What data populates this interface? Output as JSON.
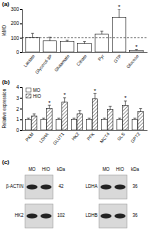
{
  "chart_data": [
    {
      "type": "bar",
      "title": "(a)",
      "y_label": "%MO",
      "categories": [
        "Lactate",
        "Glycerol-3P",
        "Glutamate",
        "Citrate",
        "Pyr",
        "GTP",
        "Glucose"
      ],
      "values": [
        100,
        78,
        72,
        58,
        125,
        240,
        12
      ],
      "errors": [
        30,
        25,
        10,
        15,
        20,
        60,
        5
      ],
      "color": "#ffffff",
      "ylim": [
        0,
        300
      ],
      "yticks": [
        0,
        100,
        200,
        300
      ],
      "reference_line": 100,
      "annotations": [
        {
          "text": "*",
          "category": 5
        },
        {
          "text": "*",
          "category": 6
        }
      ]
    },
    {
      "type": "bar",
      "title": "(b)",
      "y_label": "Relative expression",
      "categories": [
        "PKM",
        "LDHA",
        "GLUT1",
        "HK2",
        "PFK",
        "MCT4",
        "GLS",
        "GPT2"
      ],
      "series": [
        {
          "name": "MO",
          "color": "#ffffff",
          "values": [
            1,
            1,
            1,
            1,
            1,
            1,
            1,
            1
          ],
          "errors": [
            0.1,
            0.1,
            0.1,
            0.1,
            0.1,
            0.1,
            0.1,
            0.1
          ]
        },
        {
          "name": "HIO",
          "color": "#555555",
          "values": [
            1.3,
            2.0,
            2.6,
            1.5,
            2.9,
            1.9,
            2.3,
            1.7
          ],
          "errors": [
            0.2,
            0.3,
            0.4,
            0.3,
            0.5,
            0.3,
            0.4,
            0.3
          ]
        }
      ],
      "ylim": [
        0,
        4
      ],
      "yticks": [
        0,
        1,
        2,
        3,
        4
      ],
      "legend": "upper left",
      "annotations": [
        {
          "text": "*",
          "category": 1,
          "series": 1
        },
        {
          "text": "*",
          "category": 2,
          "series": 1
        },
        {
          "text": "*",
          "category": 4,
          "series": 1
        },
        {
          "text": "*",
          "category": 6,
          "series": 1
        }
      ]
    }
  ],
  "blot": {
    "title": "(c)",
    "panels": [
      {
        "columns": [
          "MO",
          "HIO",
          "kDa"
        ],
        "rows": [
          {
            "label": "β-ACTIN",
            "kda": 42
          },
          {
            "label": "HK2",
            "kda": 102
          }
        ]
      },
      {
        "columns": [
          "MO",
          "HIO",
          "kDa"
        ],
        "rows": [
          {
            "label": "LDHA",
            "kda": 36
          },
          {
            "label": "LDHB",
            "kda": 36
          }
        ]
      }
    ]
  }
}
